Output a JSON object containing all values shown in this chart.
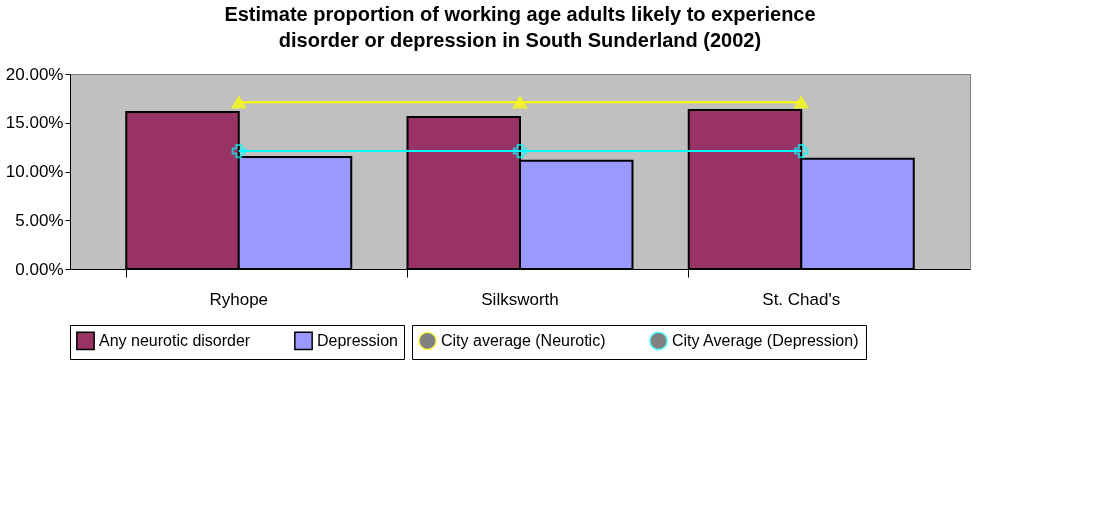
{
  "chart_data": {
    "type": "bar",
    "title": "Estimate proportion of working age adults likely to experience disorder or depression in South Sunderland (2002)",
    "categories": [
      "Ryhope",
      "Silksworth",
      "St. Chad's"
    ],
    "series": [
      {
        "name": "Any neurotic disorder",
        "color": "#993366",
        "values": [
          0.161,
          0.156,
          0.163
        ]
      },
      {
        "name": "Depression",
        "color": "#9999ff",
        "values": [
          0.115,
          0.111,
          0.113
        ]
      },
      {
        "name": "City average (Neurotic)",
        "type": "line",
        "color": "#ffff00",
        "marker": "triangle",
        "values": [
          0.171,
          0.171,
          0.171
        ]
      },
      {
        "name": "City Average (Depression)",
        "type": "line",
        "color": "#00ffff",
        "marker": "cross",
        "values": [
          0.121,
          0.121,
          0.121
        ]
      }
    ],
    "ylim": [
      0,
      0.2
    ],
    "yticks": [
      {
        "value": 0,
        "label": "0.00%"
      },
      {
        "value": 0.05,
        "label": "5.00%"
      },
      {
        "value": 0.1,
        "label": "10.00%"
      },
      {
        "value": 0.15,
        "label": "15.00%"
      },
      {
        "value": 0.2,
        "label": "20.00%"
      }
    ],
    "grid": false,
    "legend": "bottom"
  }
}
